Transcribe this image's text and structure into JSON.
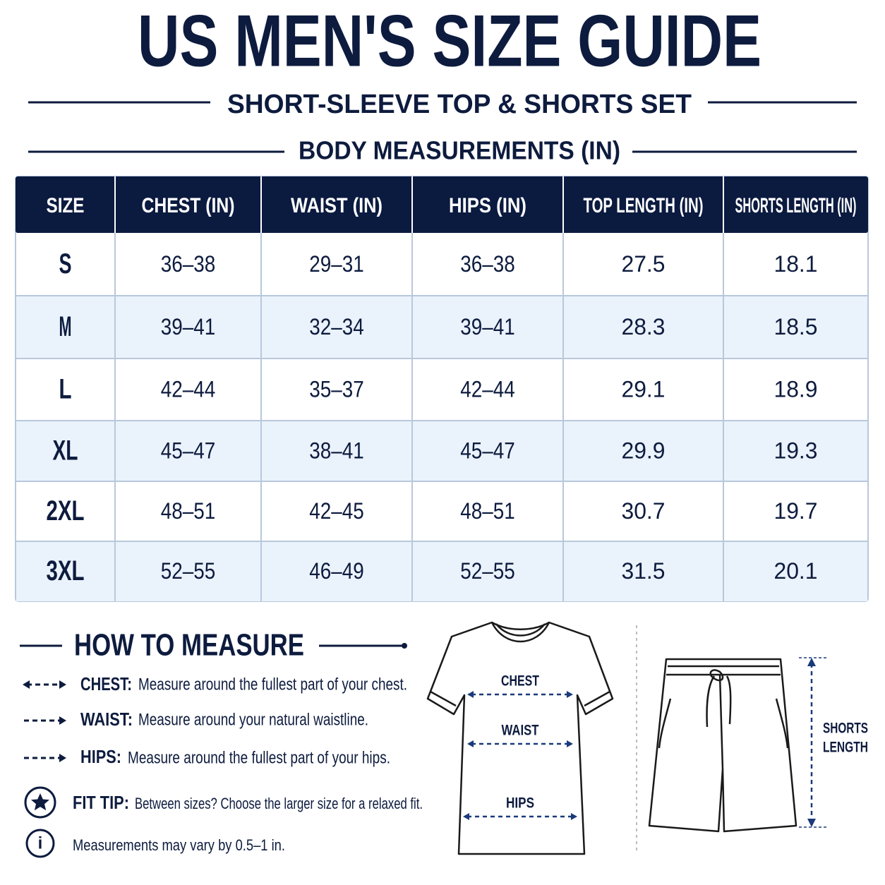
{
  "header": {
    "title": "US MEN'S SIZE GUIDE",
    "subtitle": "SHORT-SLEEVE TOP & SHORTS SET",
    "section": "BODY MEASUREMENTS (IN)"
  },
  "table": {
    "columns": [
      "SIZE",
      "CHEST (IN)",
      "WAIST (IN)",
      "HIPS (IN)",
      "TOP LENGTH (IN)",
      "SHORTS LENGTH (IN)"
    ],
    "rows": [
      [
        "S",
        "36–38",
        "29–31",
        "36–38",
        "27.5",
        "18.1"
      ],
      [
        "M",
        "39–41",
        "32–34",
        "39–41",
        "28.3",
        "18.5"
      ],
      [
        "L",
        "42–44",
        "35–37",
        "42–44",
        "29.1",
        "18.9"
      ],
      [
        "XL",
        "45–47",
        "38–41",
        "45–47",
        "29.9",
        "19.3"
      ],
      [
        "2XL",
        "48–51",
        "42–45",
        "48–51",
        "30.7",
        "19.7"
      ],
      [
        "3XL",
        "52–55",
        "46–49",
        "52–55",
        "31.5",
        "20.1"
      ]
    ]
  },
  "how_to_measure": {
    "title": "HOW TO MEASURE",
    "items": [
      {
        "label": "CHEST:",
        "text": "Measure around the fullest part of your chest."
      },
      {
        "label": "WAIST:",
        "text": "Measure around your natural waistline."
      },
      {
        "label": "HIPS:",
        "text": "Measure around the fullest part of your hips."
      }
    ],
    "fit_tip": {
      "label": "FIT TIP:",
      "text": "Between sizes? Choose the larger size for a relaxed fit."
    },
    "note": "Measurements may vary by 0.5–1 in."
  },
  "diagram": {
    "shirt_labels": [
      "CHEST",
      "WAIST",
      "HIPS"
    ],
    "shorts_label": [
      "SHORTS",
      "LENGTH"
    ]
  }
}
